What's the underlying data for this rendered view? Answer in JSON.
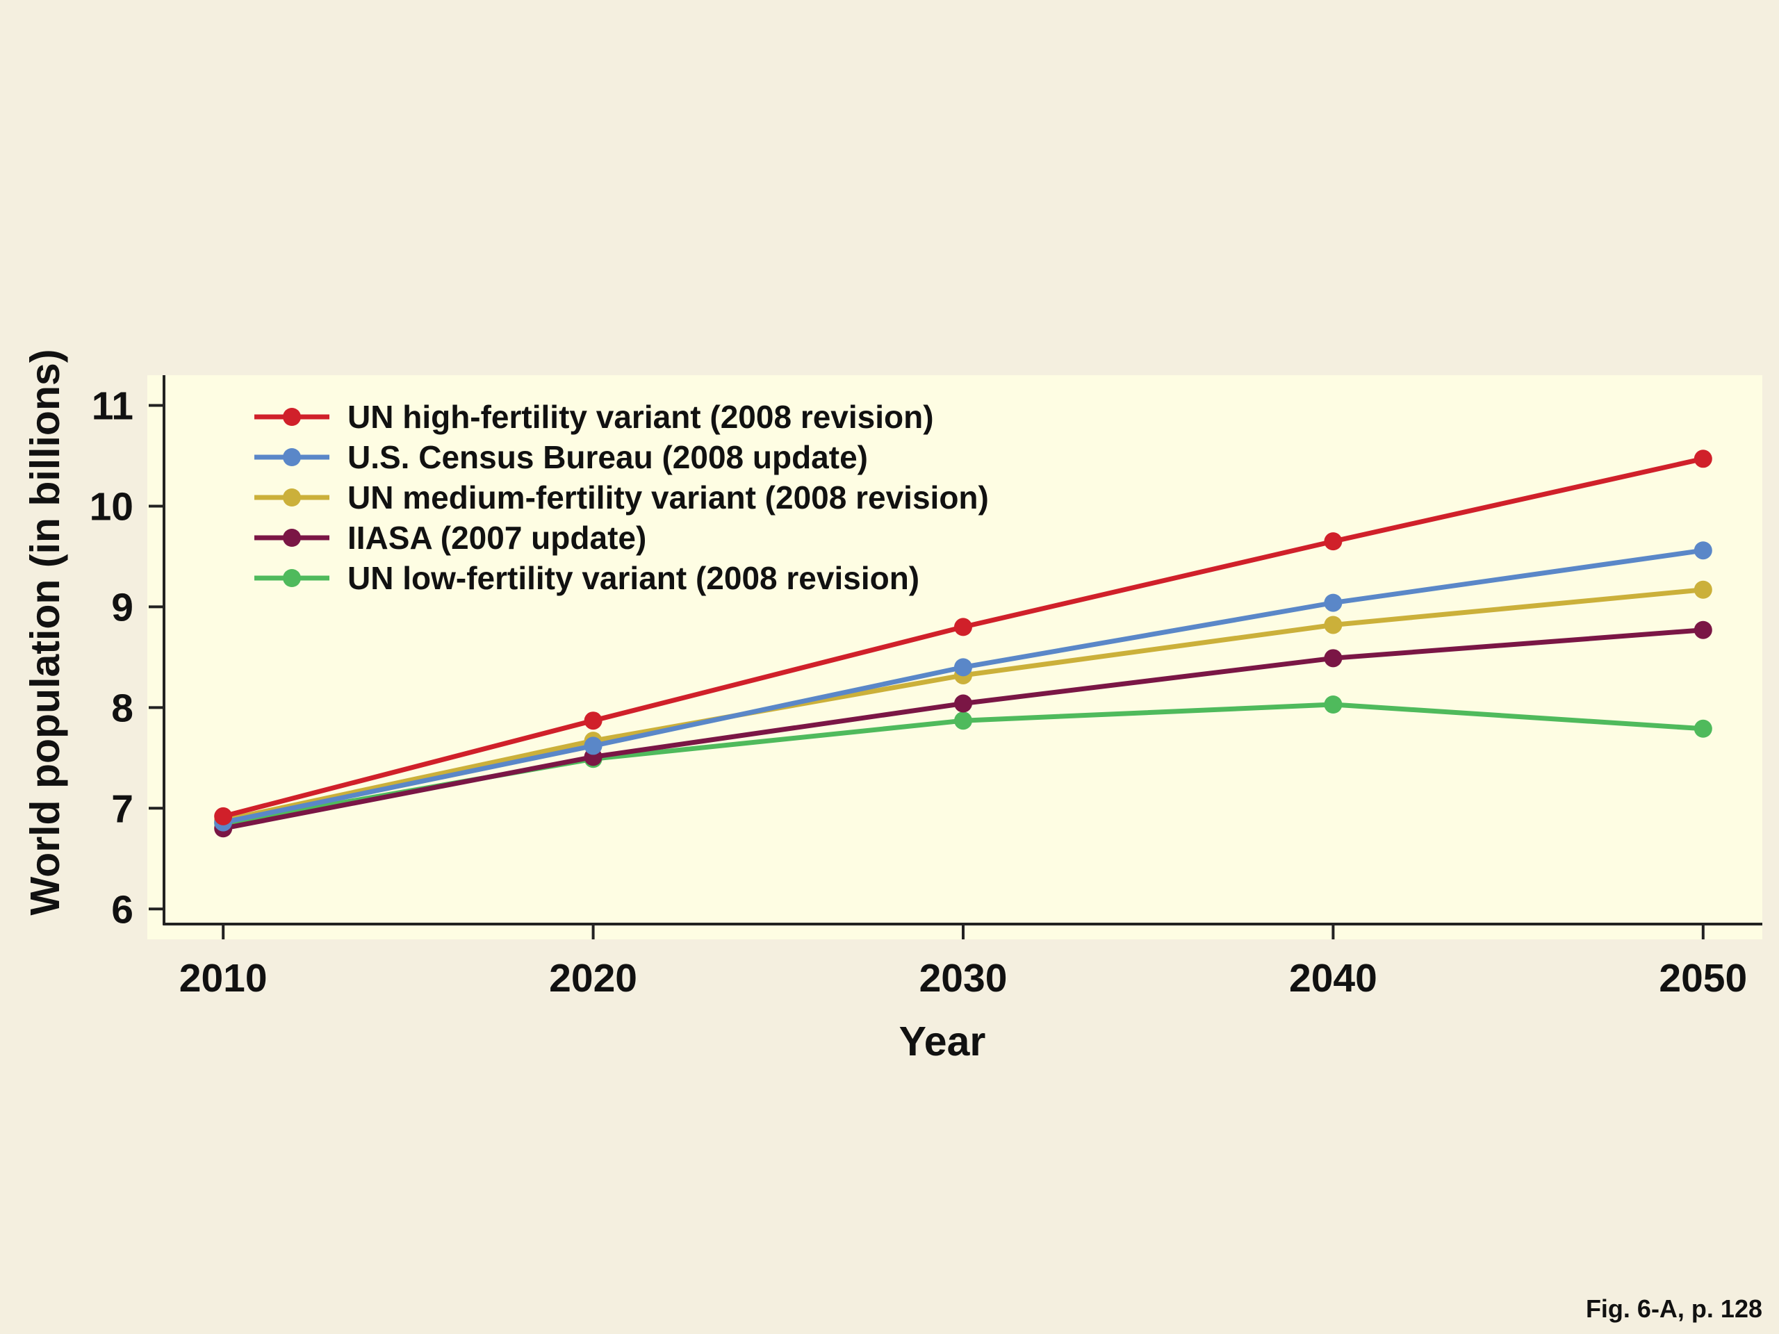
{
  "colors": {
    "background": "#f4efdf",
    "plot_background": "#fefde3",
    "axis": "#222222"
  },
  "caption": "Fig. 6-A, p. 128",
  "chart_data": {
    "type": "line",
    "x": [
      2010,
      2020,
      2030,
      2040,
      2050
    ],
    "xlabel": "Year",
    "ylabel": "World population (in billions)",
    "xlim": [
      2008.4,
      2051.6
    ],
    "ylim": [
      5.85,
      11.3
    ],
    "x_ticks": [
      "2010",
      "2020",
      "2030",
      "2040",
      "2050"
    ],
    "y_ticks": [
      "6",
      "7",
      "8",
      "9",
      "10",
      "11"
    ],
    "grid": false,
    "legend_position": "top-left",
    "series": [
      {
        "name": "UN high-fertility variant (2008 revision)",
        "color": "#d0202a",
        "values": [
          6.92,
          7.87,
          8.8,
          9.65,
          10.47
        ]
      },
      {
        "name": "U.S. Census Bureau (2008 update)",
        "color": "#5a87c8",
        "values": [
          6.86,
          7.62,
          8.4,
          9.04,
          9.56
        ]
      },
      {
        "name": "UN medium-fertility variant (2008 revision)",
        "color": "#cbb03a",
        "values": [
          6.88,
          7.67,
          8.32,
          8.82,
          9.17
        ]
      },
      {
        "name": "IIASA (2007 update)",
        "color": "#7a1645",
        "values": [
          6.8,
          7.51,
          8.04,
          8.49,
          8.77
        ]
      },
      {
        "name": "UN low-fertility variant (2008 revision)",
        "color": "#4fba5c",
        "values": [
          6.85,
          7.49,
          7.87,
          8.03,
          7.79
        ]
      }
    ]
  }
}
